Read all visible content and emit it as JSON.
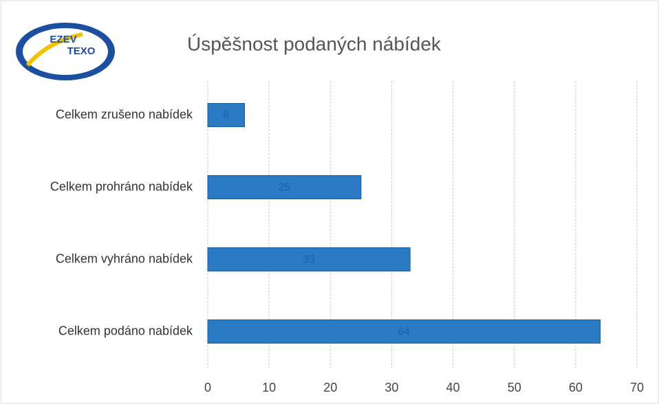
{
  "logo": {
    "line1": "EZEV",
    "line2": "TEXO"
  },
  "chart_data": {
    "type": "bar",
    "orientation": "horizontal",
    "title": "Úspěšnost podaných nábídek",
    "categories": [
      "Celkem zrušeno nabídek",
      "Celkem prohráno nabídek",
      "Celkem vyhráno nabídek",
      "Celkem podáno nabídek"
    ],
    "values": [
      6,
      25,
      33,
      64
    ],
    "color": "#2a7bc4",
    "xlim": [
      0,
      70
    ],
    "xticks": [
      0,
      10,
      20,
      30,
      40,
      50,
      60,
      70
    ],
    "grid": true
  }
}
